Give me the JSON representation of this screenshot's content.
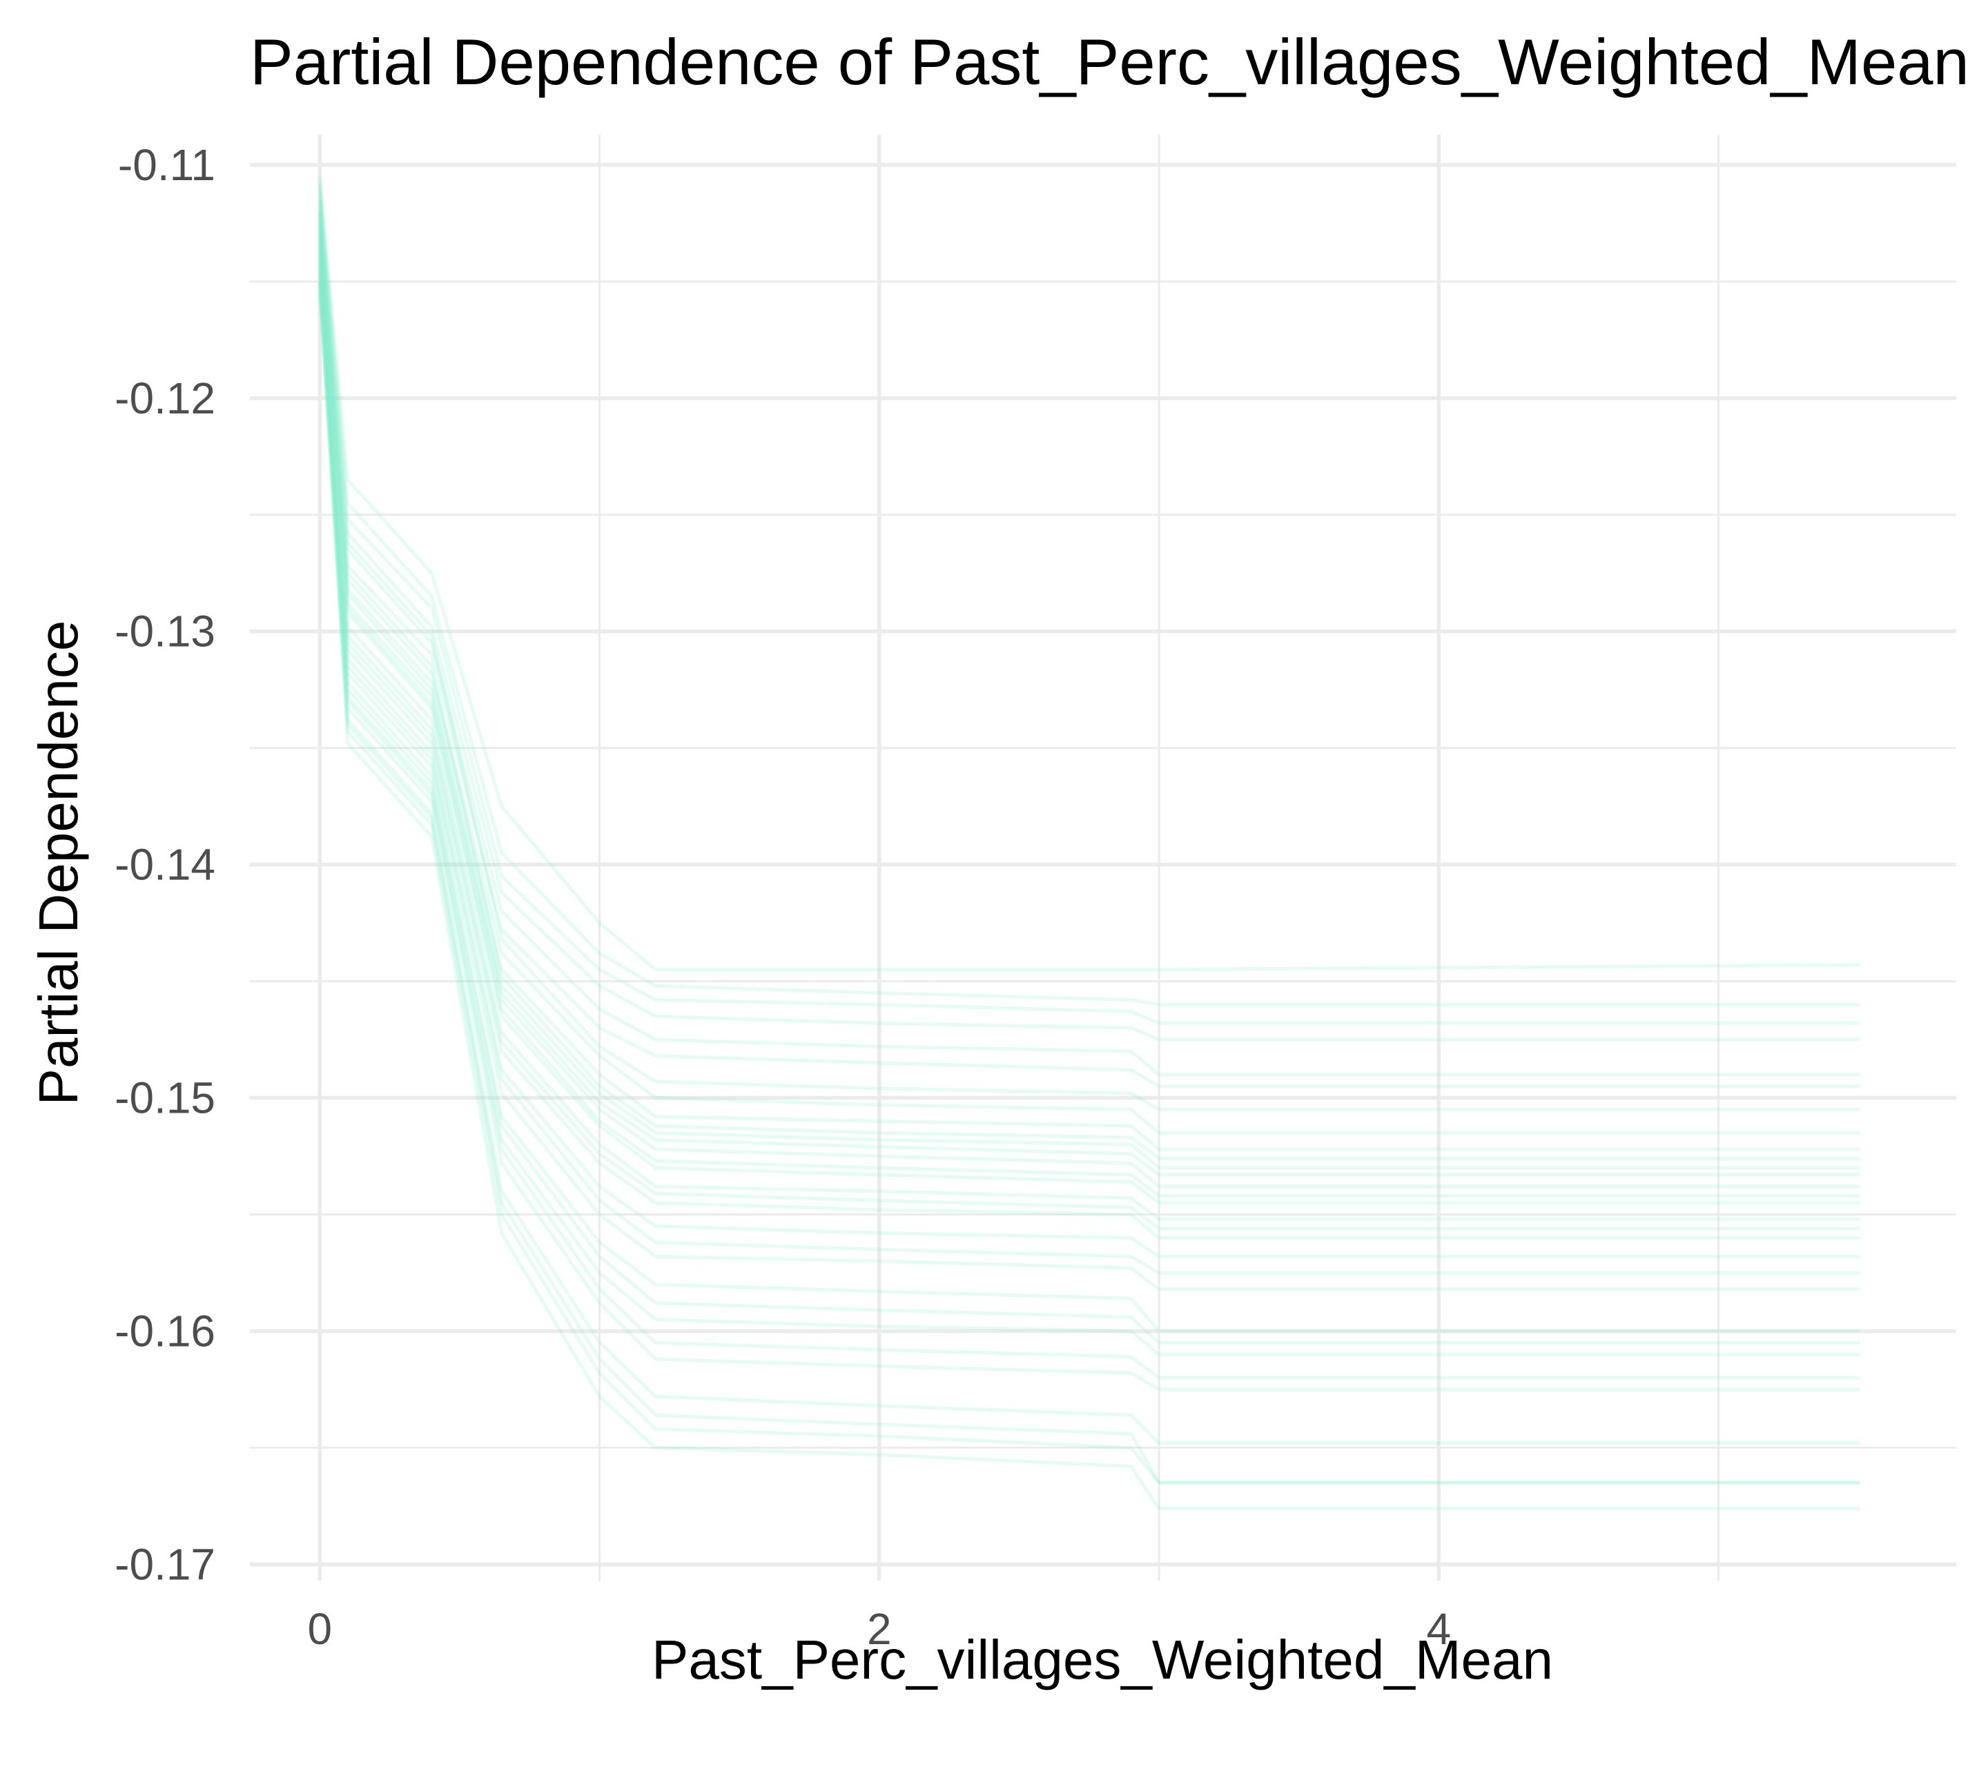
{
  "chart_data": {
    "type": "line",
    "title": "Partial Dependence of Past_Perc_villages_Weighted_Mean",
    "xlabel": "Past_Perc_villages_Weighted_Mean",
    "ylabel": "Partial Dependence",
    "xlim": [
      -0.25,
      5.85
    ],
    "ylim": [
      -0.1707,
      -0.1087
    ],
    "x_ticks": [
      0,
      2,
      4
    ],
    "x_tick_labels": [
      "0",
      "2",
      "4"
    ],
    "x_minor_ticks": [
      1,
      3,
      5
    ],
    "y_ticks": [
      -0.17,
      -0.16,
      -0.15,
      -0.14,
      -0.13,
      -0.12,
      -0.11
    ],
    "y_tick_labels": [
      "-0.17",
      "-0.16",
      "-0.15",
      "-0.14",
      "-0.13",
      "-0.12",
      "-0.11"
    ],
    "y_minor_ticks": [
      -0.165,
      -0.155,
      -0.145,
      -0.135,
      -0.125,
      -0.115
    ],
    "grid": true,
    "legend": "none",
    "line_color": "#7FEBC6",
    "line_opacity": 0.2,
    "x_grid_points": [
      0,
      0.1,
      0.4,
      0.65,
      1.0,
      1.2,
      2.0,
      2.9,
      3.0,
      5.5
    ],
    "series": [
      {
        "values": [
          -0.1105,
          -0.1235,
          -0.1275,
          -0.1375,
          -0.1425,
          -0.1445,
          -0.1445,
          -0.1445,
          -0.1445,
          -0.1443
        ]
      },
      {
        "values": [
          -0.1108,
          -0.1245,
          -0.1285,
          -0.1395,
          -0.1438,
          -0.1452,
          -0.1455,
          -0.1458,
          -0.146,
          -0.146
        ]
      },
      {
        "values": [
          -0.111,
          -0.1252,
          -0.129,
          -0.1405,
          -0.1445,
          -0.1458,
          -0.146,
          -0.1463,
          -0.1468,
          -0.1468
        ]
      },
      {
        "values": [
          -0.1112,
          -0.1258,
          -0.1298,
          -0.1412,
          -0.1452,
          -0.1465,
          -0.1468,
          -0.147,
          -0.1475,
          -0.1475
        ]
      },
      {
        "values": [
          -0.1115,
          -0.1265,
          -0.1305,
          -0.142,
          -0.1462,
          -0.1475,
          -0.1478,
          -0.148,
          -0.149,
          -0.149
        ]
      },
      {
        "values": [
          -0.1118,
          -0.1272,
          -0.131,
          -0.1428,
          -0.147,
          -0.1482,
          -0.1485,
          -0.1488,
          -0.1495,
          -0.1495
        ]
      },
      {
        "values": [
          -0.112,
          -0.1278,
          -0.1318,
          -0.1438,
          -0.1482,
          -0.15,
          -0.1503,
          -0.1505,
          -0.1515,
          -0.1515
        ]
      },
      {
        "values": [
          -0.1122,
          -0.1282,
          -0.1322,
          -0.1445,
          -0.149,
          -0.1508,
          -0.151,
          -0.1512,
          -0.1522,
          -0.1522
        ]
      },
      {
        "values": [
          -0.1125,
          -0.1288,
          -0.1328,
          -0.1452,
          -0.1498,
          -0.1515,
          -0.1518,
          -0.152,
          -0.153,
          -0.153
        ]
      },
      {
        "values": [
          -0.1128,
          -0.1292,
          -0.1333,
          -0.1458,
          -0.1505,
          -0.1522,
          -0.1525,
          -0.1528,
          -0.1538,
          -0.1538
        ]
      },
      {
        "values": [
          -0.113,
          -0.1298,
          -0.1338,
          -0.1465,
          -0.1512,
          -0.153,
          -0.1533,
          -0.1536,
          -0.1545,
          -0.1545
        ]
      },
      {
        "values": [
          -0.1133,
          -0.1302,
          -0.1342,
          -0.1472,
          -0.152,
          -0.1538,
          -0.154,
          -0.1543,
          -0.1552,
          -0.1552
        ]
      },
      {
        "values": [
          -0.1135,
          -0.1308,
          -0.1348,
          -0.148,
          -0.1528,
          -0.1545,
          -0.1548,
          -0.155,
          -0.156,
          -0.156
        ]
      },
      {
        "values": [
          -0.1138,
          -0.1312,
          -0.1352,
          -0.1488,
          -0.1538,
          -0.1555,
          -0.1558,
          -0.156,
          -0.1568,
          -0.1568
        ]
      },
      {
        "values": [
          -0.114,
          -0.1318,
          -0.1358,
          -0.1498,
          -0.155,
          -0.1568,
          -0.157,
          -0.1573,
          -0.1582,
          -0.1582
        ]
      },
      {
        "values": [
          -0.1143,
          -0.1322,
          -0.1362,
          -0.1508,
          -0.1562,
          -0.158,
          -0.1583,
          -0.1586,
          -0.16,
          -0.16
        ]
      },
      {
        "values": [
          -0.1145,
          -0.1328,
          -0.1368,
          -0.1518,
          -0.1575,
          -0.1595,
          -0.1598,
          -0.16,
          -0.161,
          -0.161
        ]
      },
      {
        "values": [
          -0.1148,
          -0.1333,
          -0.1373,
          -0.1528,
          -0.1588,
          -0.1612,
          -0.1615,
          -0.1618,
          -0.1625,
          -0.1625
        ]
      },
      {
        "values": [
          -0.115,
          -0.1338,
          -0.1378,
          -0.154,
          -0.1605,
          -0.1628,
          -0.1632,
          -0.1636,
          -0.1648,
          -0.1648
        ]
      },
      {
        "values": [
          -0.1152,
          -0.1343,
          -0.1383,
          -0.155,
          -0.1618,
          -0.1642,
          -0.1645,
          -0.165,
          -0.1665,
          -0.1665
        ]
      },
      {
        "values": [
          -0.1155,
          -0.1348,
          -0.1388,
          -0.1558,
          -0.1628,
          -0.165,
          -0.1653,
          -0.1658,
          -0.1676,
          -0.1676
        ]
      },
      {
        "values": [
          -0.1116,
          -0.1262,
          -0.1302,
          -0.1432,
          -0.1478,
          -0.1493,
          -0.1496,
          -0.1498,
          -0.1505,
          -0.1505
        ]
      },
      {
        "values": [
          -0.1121,
          -0.1275,
          -0.1315,
          -0.1448,
          -0.1495,
          -0.1512,
          -0.1515,
          -0.1517,
          -0.1526,
          -0.1526
        ]
      },
      {
        "values": [
          -0.1127,
          -0.129,
          -0.1331,
          -0.1462,
          -0.151,
          -0.1527,
          -0.153,
          -0.1533,
          -0.1542,
          -0.1542
        ]
      },
      {
        "values": [
          -0.1132,
          -0.1305,
          -0.1345,
          -0.1476,
          -0.1524,
          -0.1541,
          -0.1544,
          -0.1547,
          -0.1556,
          -0.1556
        ]
      },
      {
        "values": [
          -0.1137,
          -0.1315,
          -0.1355,
          -0.1492,
          -0.1544,
          -0.1562,
          -0.1565,
          -0.1568,
          -0.1575,
          -0.1575
        ]
      },
      {
        "values": [
          -0.1142,
          -0.1325,
          -0.1365,
          -0.1512,
          -0.1568,
          -0.1588,
          -0.1591,
          -0.1594,
          -0.1605,
          -0.1605
        ]
      },
      {
        "values": [
          -0.1146,
          -0.133,
          -0.137,
          -0.1522,
          -0.1582,
          -0.1605,
          -0.1608,
          -0.1611,
          -0.162,
          -0.162
        ]
      },
      {
        "values": [
          -0.1151,
          -0.134,
          -0.138,
          -0.1545,
          -0.1612,
          -0.1636,
          -0.164,
          -0.1644,
          -0.1665,
          -0.1665
        ]
      },
      {
        "values": [
          -0.1124,
          -0.1284,
          -0.1325,
          -0.1455,
          -0.1502,
          -0.1518,
          -0.1521,
          -0.1524,
          -0.1533,
          -0.1533
        ]
      }
    ]
  }
}
